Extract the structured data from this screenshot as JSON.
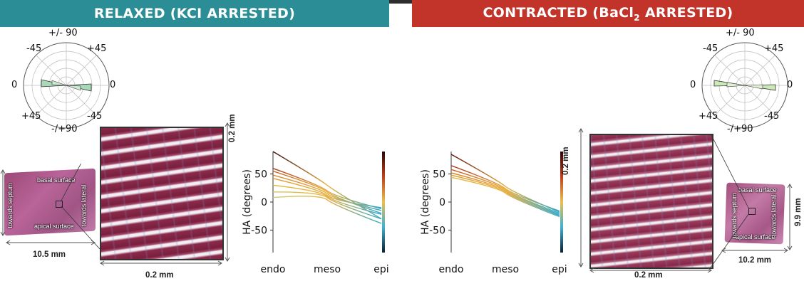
{
  "banners": {
    "relaxed": "RELAXED (KCI ARRESTED)",
    "contracted_prefix": "CONTRACTED (BaCl",
    "contracted_sub": "2",
    "contracted_suffix": " ARRESTED)"
  },
  "polar": {
    "top": "+/- 90",
    "upper_left": "-45",
    "upper_right": "+45",
    "left": "0",
    "right": "0",
    "lower_left": "+45",
    "lower_right": "-45",
    "bottom": "-/+90"
  },
  "tissue_labels": {
    "basal": "basal surface",
    "apical": "apical surface",
    "septum": "towards septum",
    "lateral": "towards lateral"
  },
  "dimensions": {
    "relaxed_width": "10.5 mm",
    "contracted_width": "10.2 mm",
    "contracted_height": "9.9 mm",
    "micro_width": "0.2 mm",
    "micro_height": "0.2 mm"
  },
  "chart_data": [
    {
      "type": "line",
      "ylabel": "HA (degrees)",
      "x": [
        "endo",
        "meso",
        "epi"
      ],
      "yticks": [
        50,
        0,
        -50
      ],
      "ylim": [
        -90,
        90
      ],
      "series": [
        {
          "values": [
            90,
            30,
            -30
          ],
          "color": "#3a0a0a"
        },
        {
          "values": [
            60,
            20,
            -12
          ],
          "color": "#b03a1a"
        },
        {
          "values": [
            55,
            18,
            -20
          ],
          "color": "#c85a1a"
        },
        {
          "values": [
            48,
            15,
            -15
          ],
          "color": "#d97a20"
        },
        {
          "values": [
            42,
            12,
            -10
          ],
          "color": "#e09a2a"
        },
        {
          "values": [
            30,
            10,
            -22
          ],
          "color": "#e0b840"
        },
        {
          "values": [
            18,
            8,
            -30
          ],
          "color": "#d8c850"
        },
        {
          "values": [
            8,
            4,
            -38
          ],
          "color": "#c8d078"
        }
      ]
    },
    {
      "type": "line",
      "ylabel": "HA (degrees)",
      "x": [
        "endo",
        "meso",
        "epi"
      ],
      "yticks": [
        50,
        0,
        -50
      ],
      "ylim": [
        -90,
        90
      ],
      "series": [
        {
          "values": [
            85,
            28,
            -18
          ],
          "color": "#5a0a0a"
        },
        {
          "values": [
            65,
            24,
            -16
          ],
          "color": "#b02a1a"
        },
        {
          "values": [
            58,
            22,
            -20
          ],
          "color": "#c85a1a"
        },
        {
          "values": [
            52,
            20,
            -22
          ],
          "color": "#d97a20"
        },
        {
          "values": [
            48,
            18,
            -24
          ],
          "color": "#e09a2a"
        },
        {
          "values": [
            44,
            16,
            -26
          ],
          "color": "#e0b840"
        }
      ]
    }
  ]
}
